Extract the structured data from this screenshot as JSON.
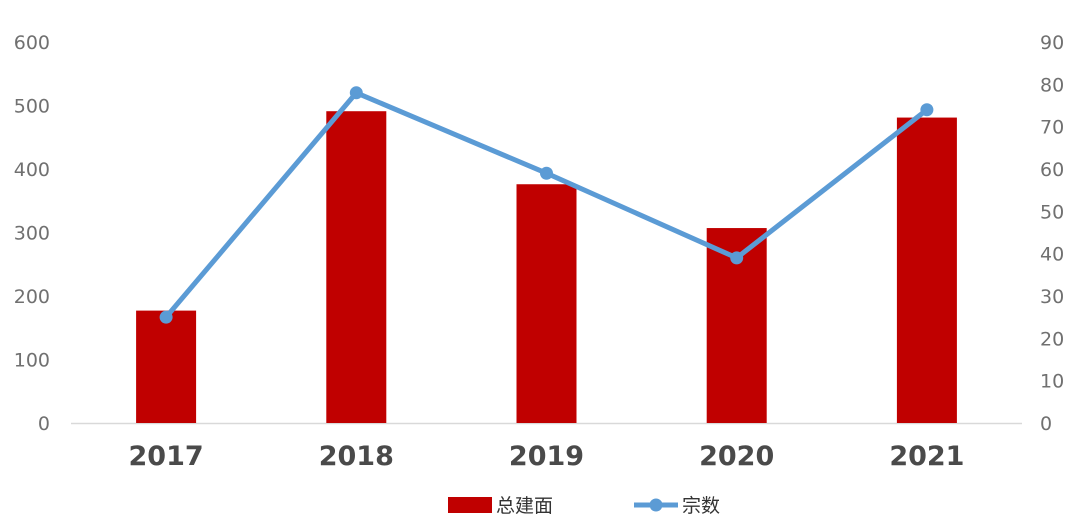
{
  "chart_data": {
    "type": "bar",
    "categories": [
      "2017",
      "2018",
      "2019",
      "2020",
      "2021"
    ],
    "series": [
      {
        "name": "总建面",
        "type": "bar",
        "axis": "left",
        "color": "#C00000",
        "values": [
          177,
          491,
          376,
          307,
          481
        ]
      },
      {
        "name": "宗数",
        "type": "line",
        "axis": "right",
        "color": "#5B9BD5",
        "values": [
          25,
          78,
          59,
          39,
          74
        ]
      }
    ],
    "y_left": {
      "ylim": [
        0,
        600
      ],
      "ticks": [
        "0",
        "100",
        "200",
        "300",
        "400",
        "500",
        "600"
      ]
    },
    "y_right": {
      "ylim": [
        0,
        90
      ],
      "ticks": [
        "0",
        "10",
        "20",
        "30",
        "40",
        "50",
        "60",
        "70",
        "80",
        "90"
      ]
    },
    "grid": false,
    "legend_position": "bottom-center",
    "title": "",
    "xlabel": "",
    "ylabel": ""
  }
}
